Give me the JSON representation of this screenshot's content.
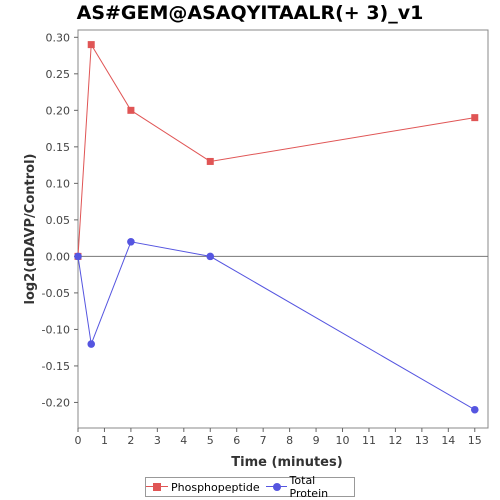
{
  "chart_data": {
    "type": "line",
    "title": "AS#GEM@ASAQYITAALR(+ 3)_v1",
    "xlabel": "Time (minutes)",
    "ylabel": "log2(dDAVP/Control)",
    "xlim": [
      0,
      15.5
    ],
    "ylim": [
      -0.235,
      0.31
    ],
    "xticks": [
      0,
      1,
      2,
      3,
      4,
      5,
      6,
      7,
      8,
      9,
      10,
      11,
      12,
      13,
      14,
      15
    ],
    "yticks": [
      -0.2,
      -0.15,
      -0.1,
      -0.05,
      0.0,
      0.05,
      0.1,
      0.15,
      0.2,
      0.25,
      0.3
    ],
    "ytick_labels": [
      "-0.20",
      "-0.15",
      "-0.10",
      "-0.05",
      "0.00",
      "0.05",
      "0.10",
      "0.15",
      "0.20",
      "0.25",
      "0.30"
    ],
    "series": [
      {
        "name": "Phosphopeptide",
        "color": "#e05555",
        "marker": "square",
        "x": [
          0,
          0.5,
          2,
          5,
          15
        ],
        "y": [
          0.0,
          0.29,
          0.2,
          0.13,
          0.19
        ]
      },
      {
        "name": "Total Protein",
        "color": "#5555e0",
        "marker": "circle",
        "x": [
          0,
          0.5,
          2,
          5,
          15
        ],
        "y": [
          0.0,
          -0.12,
          0.02,
          0.0,
          -0.21
        ]
      }
    ],
    "legend_position": "bottom",
    "zero_line": true
  }
}
